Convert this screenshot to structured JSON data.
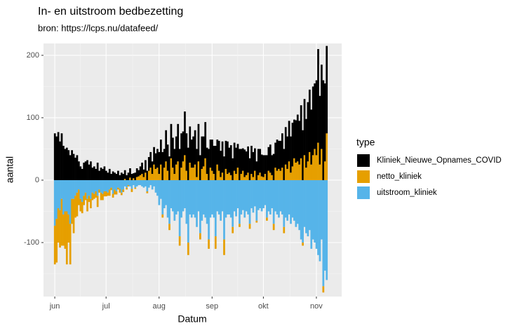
{
  "chart_data": {
    "type": "bar",
    "stacked": true,
    "title": "In- en uitstroom bedbezetting",
    "subtitle": "bron: https://lcps.nu/datafeed/",
    "x_label": "Datum",
    "y_label": "aantal",
    "legend_title": "type",
    "legend_position": "right",
    "grid": true,
    "ylim": [
      -186.5,
      219
    ],
    "yticks": [
      -100,
      0,
      100,
      200
    ],
    "categories": [
      "jun",
      null,
      null,
      null,
      null,
      null,
      null,
      null,
      null,
      null,
      null,
      null,
      null,
      null,
      null,
      null,
      null,
      null,
      null,
      null,
      null,
      null,
      null,
      null,
      null,
      null,
      null,
      null,
      null,
      null,
      "jul",
      null,
      null,
      null,
      null,
      null,
      null,
      null,
      null,
      null,
      null,
      null,
      null,
      null,
      null,
      null,
      null,
      null,
      null,
      null,
      null,
      null,
      null,
      null,
      null,
      null,
      null,
      null,
      null,
      null,
      null,
      "aug",
      null,
      null,
      null,
      null,
      null,
      null,
      null,
      null,
      null,
      null,
      null,
      null,
      null,
      null,
      null,
      null,
      null,
      null,
      null,
      null,
      null,
      null,
      null,
      null,
      null,
      null,
      null,
      null,
      null,
      null,
      "sep",
      null,
      null,
      null,
      null,
      null,
      null,
      null,
      null,
      null,
      null,
      null,
      null,
      null,
      null,
      null,
      null,
      null,
      null,
      null,
      null,
      null,
      null,
      null,
      null,
      null,
      null,
      null,
      null,
      null,
      "okt",
      null,
      null,
      null,
      null,
      null,
      null,
      null,
      null,
      null,
      null,
      null,
      null,
      null,
      null,
      null,
      null,
      null,
      null,
      null,
      null,
      null,
      null,
      null,
      null,
      null,
      null,
      null,
      null,
      null,
      null,
      "nov",
      null,
      null,
      null,
      null,
      null,
      null
    ],
    "series": [
      {
        "name": "Kliniek_Nieuwe_Opnames_COVID",
        "color": "#000000",
        "values": [
          75,
          70,
          77,
          62,
          75,
          55,
          50,
          52,
          48,
          40,
          48,
          42,
          36,
          40,
          30,
          22,
          18,
          28,
          30,
          32,
          25,
          30,
          20,
          22,
          18,
          28,
          15,
          20,
          18,
          22,
          15,
          12,
          18,
          10,
          14,
          12,
          10,
          15,
          8,
          12,
          10,
          14,
          8,
          12,
          15,
          10,
          8,
          12,
          14,
          10,
          14,
          18,
          12,
          20,
          15,
          22,
          25,
          20,
          28,
          25,
          30,
          35,
          40,
          45,
          30,
          50,
          42,
          38,
          55,
          48,
          40,
          45,
          60,
          50,
          55,
          48,
          70,
          60,
          52,
          58,
          45,
          50,
          55,
          45,
          60,
          40,
          52,
          48,
          58,
          42,
          50,
          45,
          50,
          45,
          55,
          40,
          48,
          42,
          50,
          38,
          45,
          52,
          40,
          48,
          35,
          45,
          42,
          38,
          50,
          40,
          36,
          44,
          38,
          42,
          35,
          45,
          40,
          36,
          30,
          42,
          38,
          35,
          35,
          30,
          40,
          38,
          45,
          32,
          42,
          40,
          50,
          45,
          48,
          55,
          50,
          60,
          52,
          65,
          58,
          70,
          62,
          68,
          75,
          70,
          85,
          80,
          90,
          78,
          95,
          100,
          88,
          110,
          105,
          120,
          150,
          110,
          135,
          160,
          125,
          140
        ]
      },
      {
        "name": "netto_kliniek",
        "color": "#E69F00",
        "values": [
          -62,
          -70,
          -55,
          -60,
          -75,
          -50,
          -60,
          -85,
          -45,
          -65,
          -40,
          -55,
          -35,
          -38,
          -25,
          -20,
          -18,
          -15,
          -12,
          -20,
          -10,
          -15,
          -12,
          -8,
          -10,
          -18,
          -5,
          -12,
          -10,
          -8,
          -8,
          -5,
          -10,
          -4,
          -6,
          -8,
          -5,
          -3,
          -6,
          -4,
          -4,
          2,
          -3,
          -2,
          4,
          -5,
          3,
          -2,
          5,
          6,
          8,
          10,
          5,
          12,
          -3,
          15,
          20,
          10,
          25,
          18,
          20,
          10,
          25,
          -5,
          20,
          30,
          15,
          -10,
          35,
          20,
          10,
          25,
          30,
          -15,
          20,
          30,
          40,
          15,
          -20,
          28,
          20,
          20,
          25,
          5,
          30,
          -10,
          18,
          22,
          35,
          10,
          -15,
          20,
          15,
          10,
          -20,
          25,
          15,
          5,
          12,
          -25,
          18,
          10,
          12,
          8,
          -10,
          15,
          10,
          20,
          -5,
          10,
          15,
          5,
          8,
          12,
          -8,
          10,
          5,
          15,
          -3,
          8,
          12,
          6,
          5,
          10,
          -5,
          15,
          12,
          8,
          -10,
          20,
          15,
          18,
          15,
          20,
          -10,
          25,
          18,
          30,
          12,
          22,
          35,
          28,
          30,
          25,
          35,
          -5,
          40,
          20,
          30,
          45,
          25,
          40,
          50,
          40,
          60,
          25,
          50,
          -10,
          30,
          75
        ]
      },
      {
        "name": "uitstroom_kliniek",
        "color": "#56B4E9",
        "values": [
          -73,
          -62,
          -45,
          -48,
          -30,
          -55,
          -50,
          -50,
          -55,
          -70,
          -30,
          -30,
          -25,
          -20,
          -15,
          -30,
          -35,
          -25,
          -20,
          -30,
          -25,
          -30,
          -20,
          -22,
          -18,
          -25,
          -15,
          -20,
          -22,
          -18,
          -18,
          -20,
          -15,
          -12,
          -22,
          -15,
          -18,
          -12,
          -14,
          -20,
          -15,
          -10,
          -12,
          -8,
          -10,
          -14,
          -8,
          -12,
          -10,
          -8,
          -8,
          -10,
          -12,
          -10,
          -18,
          -12,
          -8,
          -15,
          -10,
          -20,
          -25,
          -40,
          -30,
          -55,
          -45,
          -40,
          -60,
          -70,
          -45,
          -50,
          -65,
          -55,
          -50,
          -90,
          -60,
          -50,
          -45,
          -70,
          -100,
          -55,
          -60,
          -55,
          -60,
          -75,
          -50,
          -85,
          -65,
          -55,
          -60,
          -70,
          -95,
          -60,
          -55,
          -60,
          -90,
          -50,
          -55,
          -65,
          -50,
          -95,
          -60,
          -55,
          -55,
          -60,
          -75,
          -50,
          -58,
          -45,
          -70,
          -55,
          -48,
          -60,
          -50,
          -55,
          -70,
          -45,
          -52,
          -42,
          -65,
          -48,
          -45,
          -50,
          -45,
          -40,
          -60,
          -50,
          -55,
          -45,
          -70,
          -50,
          -55,
          -60,
          -50,
          -55,
          -75,
          -60,
          -65,
          -55,
          -70,
          -60,
          -65,
          -75,
          -70,
          -80,
          -95,
          -100,
          -75,
          -85,
          -90,
          -80,
          -110,
          -95,
          -100,
          -110,
          -120,
          -130,
          -95,
          -170,
          -145,
          -160
        ]
      }
    ]
  }
}
